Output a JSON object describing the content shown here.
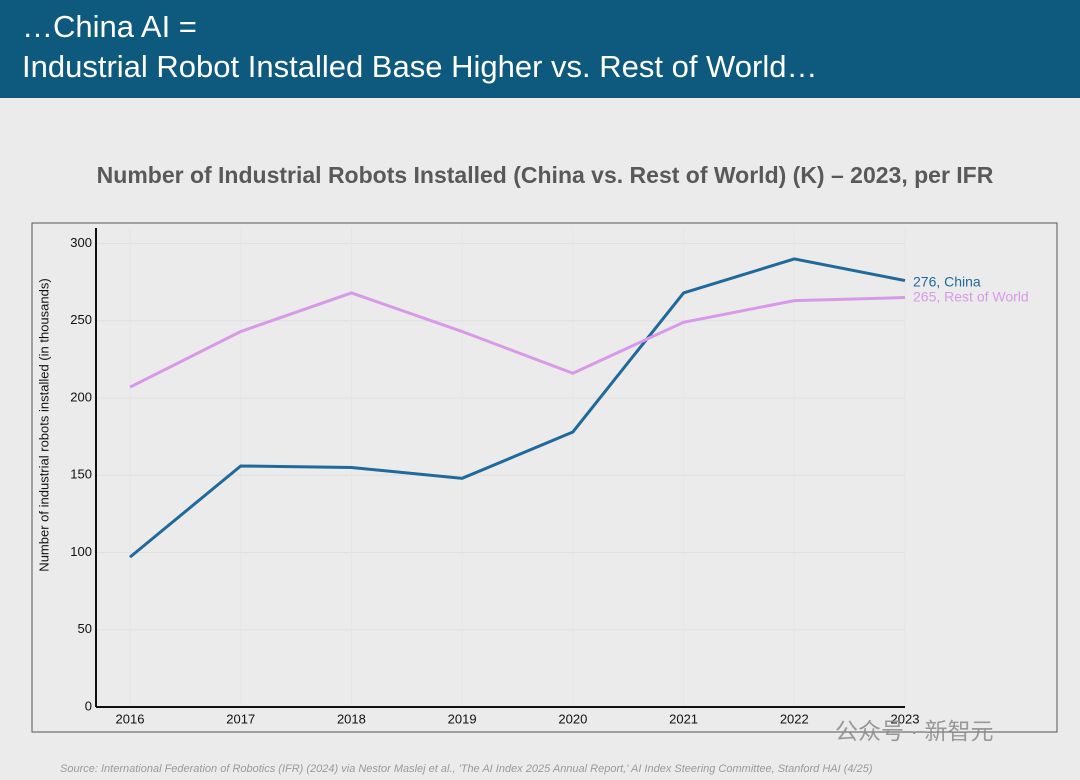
{
  "header": {
    "title_lines": [
      "…China AI =",
      "Industrial Robot Installed Base Higher vs. Rest of World…"
    ]
  },
  "chart_data": {
    "type": "line",
    "title": "Number of Industrial Robots Installed (China vs. Rest of World) (K) – 2023, per IFR",
    "y_label": "Number of industrial robots installed (in thousands)",
    "categories": [
      "2016",
      "2017",
      "2018",
      "2019",
      "2020",
      "2021",
      "2022",
      "2023"
    ],
    "series": [
      {
        "name": "China",
        "color": "#21699b",
        "values": [
          97,
          156,
          155,
          148,
          178,
          268,
          290,
          276
        ],
        "value_labels": [
          null,
          null,
          null,
          null,
          null,
          null,
          null,
          "276,"
        ]
      },
      {
        "name": "Rest of World",
        "color": "#d89ae8",
        "values": [
          207,
          243,
          268,
          243,
          216,
          249,
          263,
          265
        ],
        "value_labels": [
          null,
          null,
          null,
          null,
          null,
          null,
          null,
          "265,"
        ]
      }
    ],
    "ylim": [
      0,
      310
    ],
    "yticks": [
      0,
      50,
      100,
      150,
      200,
      250,
      300
    ],
    "grid": true
  },
  "source": "Source: International Federation of Robotics (IFR) (2024) via Nestor Maslej et al., 'The AI Index 2025 Annual Report,' AI Index Steering Committee, Stanford HAI (4/25)",
  "watermark": "公众号 · 新智元"
}
